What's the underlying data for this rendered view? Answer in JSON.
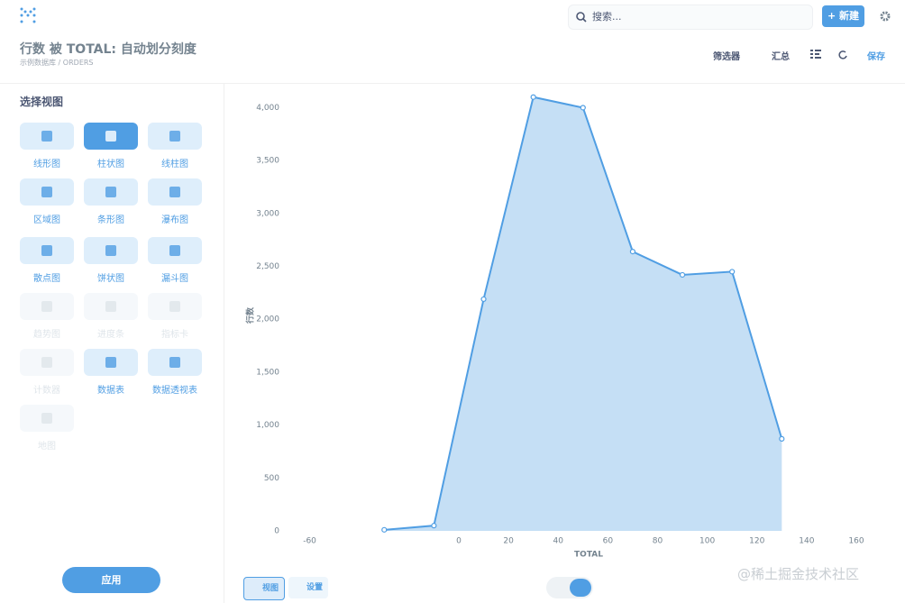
{
  "header": {
    "search_placeholder": "搜索...",
    "new_button": "新建"
  },
  "question": {
    "title": "行数 被 TOTAL: 自动划分刻度",
    "database": "示例数据库",
    "separator": "/",
    "table": "ORDERS"
  },
  "actions": {
    "filter": "筛选器",
    "summarize": "汇总",
    "save": "保存"
  },
  "sidebar": {
    "title": "选择视图",
    "items": [
      {
        "label": "线形图",
        "enabled": true
      },
      {
        "label": "柱状图",
        "enabled": true,
        "selected": true
      },
      {
        "label": "线柱图",
        "enabled": true
      },
      {
        "label": "区域图",
        "enabled": true
      },
      {
        "label": "条形图",
        "enabled": true
      },
      {
        "label": "瀑布图",
        "enabled": true
      },
      {
        "label": "散点图",
        "enabled": true
      },
      {
        "label": "饼状图",
        "enabled": true
      },
      {
        "label": "漏斗图",
        "enabled": true
      },
      {
        "label": "趋势图",
        "enabled": false
      },
      {
        "label": "进度条",
        "enabled": false
      },
      {
        "label": "指标卡",
        "enabled": false
      },
      {
        "label": "计数器",
        "enabled": false
      },
      {
        "label": "数据表",
        "enabled": true
      },
      {
        "label": "数据透视表",
        "enabled": true
      },
      {
        "label": "地图",
        "enabled": false
      }
    ],
    "apply_button": "应用"
  },
  "footer": {
    "view_button": "视图",
    "settings_button": "设置"
  },
  "watermark": "@稀土掘金技术社区",
  "chart_data": {
    "type": "area",
    "x_label": "TOTAL",
    "y_label": "行数",
    "x": [
      -30,
      -10,
      10,
      30,
      50,
      70,
      90,
      110,
      130
    ],
    "values": [
      10,
      50,
      2190,
      4100,
      4000,
      2640,
      2420,
      2450,
      870
    ],
    "color": "#509ee3",
    "fill": "#c5dff5",
    "xlim": [
      -70,
      160
    ],
    "xticks": [
      -60,
      0,
      20,
      40,
      60,
      80,
      100,
      120,
      140,
      160
    ],
    "ylim": [
      0,
      4200
    ],
    "yticks": [
      0,
      500,
      {
        "value": 1000,
        "label": "1,000"
      },
      {
        "value": 1500,
        "label": "1,500"
      },
      {
        "value": 2000,
        "label": "2,000"
      },
      {
        "value": 2500,
        "label": "2,500"
      },
      {
        "value": 3000,
        "label": "3,000"
      },
      {
        "value": 3500,
        "label": "3,500"
      },
      {
        "value": 4000,
        "label": "4,000"
      }
    ]
  }
}
